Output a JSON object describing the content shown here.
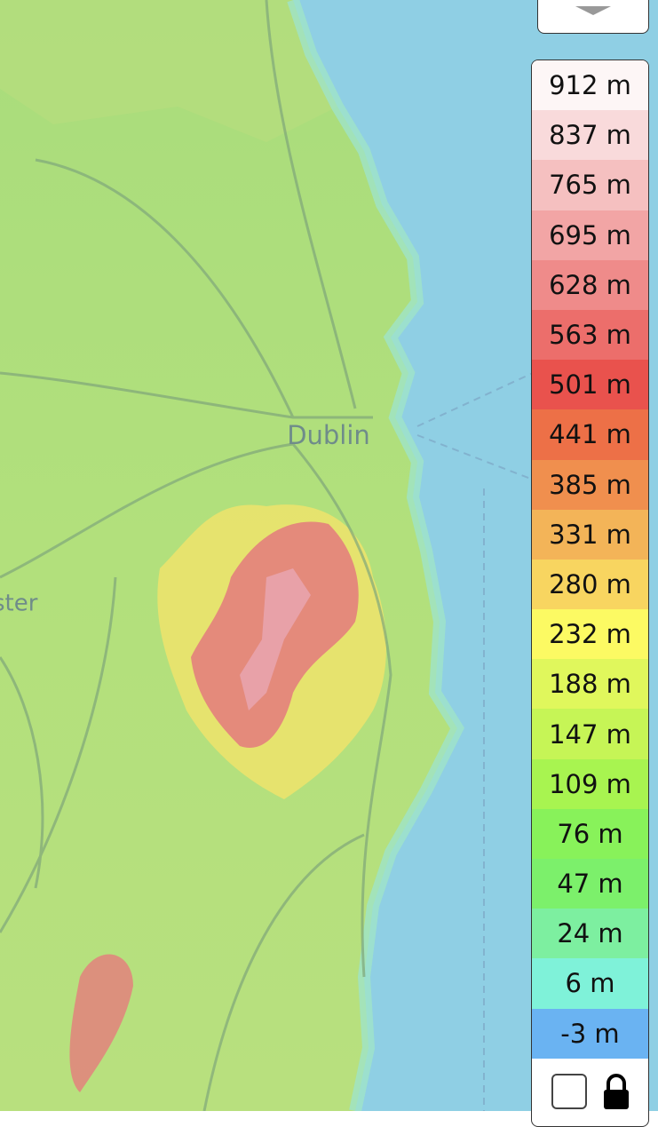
{
  "map": {
    "labels": [
      "Dublin",
      "ster"
    ]
  },
  "legend": {
    "items": [
      {
        "label": "912 m",
        "color": "#fdf6f6"
      },
      {
        "label": "837 m",
        "color": "#f9dadb"
      },
      {
        "label": "765 m",
        "color": "#f5c0c0"
      },
      {
        "label": "695 m",
        "color": "#f2a5a5"
      },
      {
        "label": "628 m",
        "color": "#ef8b8a"
      },
      {
        "label": "563 m",
        "color": "#ec6e6b"
      },
      {
        "label": "501 m",
        "color": "#e9524d"
      },
      {
        "label": "441 m",
        "color": "#ed7047"
      },
      {
        "label": "385 m",
        "color": "#f08f4e"
      },
      {
        "label": "331 m",
        "color": "#f3b458"
      },
      {
        "label": "280 m",
        "color": "#f8d560"
      },
      {
        "label": "232 m",
        "color": "#fcfa63"
      },
      {
        "label": "188 m",
        "color": "#e0f75c"
      },
      {
        "label": "147 m",
        "color": "#c6f556"
      },
      {
        "label": "109 m",
        "color": "#a8f450"
      },
      {
        "label": "76 m",
        "color": "#88f25a"
      },
      {
        "label": "47 m",
        "color": "#7cf06b"
      },
      {
        "label": "24 m",
        "color": "#7defa0"
      },
      {
        "label": "6 m",
        "color": "#7ff2d9"
      },
      {
        "label": "-3 m",
        "color": "#6ab3f2"
      }
    ]
  }
}
